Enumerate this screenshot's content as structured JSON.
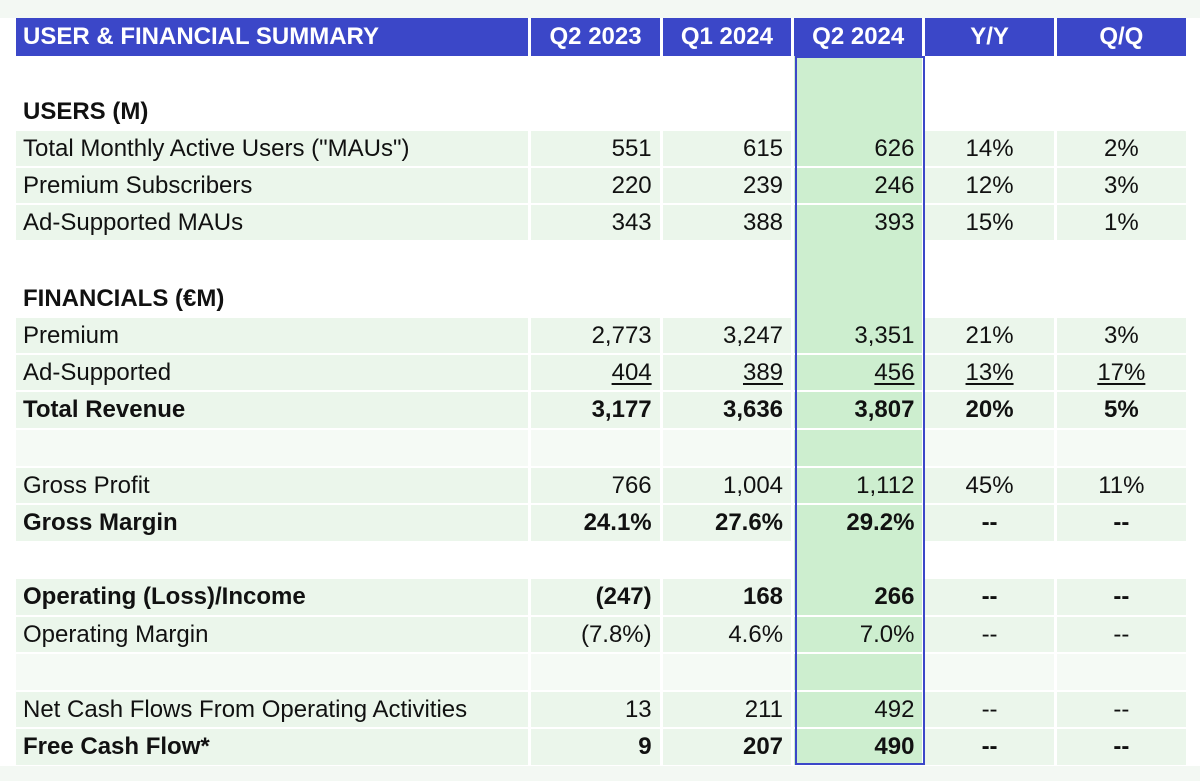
{
  "header": {
    "title": "USER & FINANCIAL SUMMARY",
    "columns": [
      "Q2 2023",
      "Q1 2024",
      "Q2 2024",
      "Y/Y",
      "Q/Q"
    ]
  },
  "sections": {
    "users": "USERS (M)",
    "financials": "FINANCIALS (€M)"
  },
  "rows": {
    "mau": [
      "Total Monthly Active Users (\"MAUs\")",
      "551",
      "615",
      "626",
      "14%",
      "2%"
    ],
    "premium_subs": [
      "Premium Subscribers",
      "220",
      "239",
      "246",
      "12%",
      "3%"
    ],
    "ad_maus": [
      "Ad-Supported MAUs",
      "343",
      "388",
      "393",
      "15%",
      "1%"
    ],
    "premium": [
      "Premium",
      "2,773",
      "3,247",
      "3,351",
      "21%",
      "3%"
    ],
    "ad_supported": [
      "Ad-Supported",
      "404",
      "389",
      "456",
      "13%",
      "17%"
    ],
    "total_revenue": [
      "Total Revenue",
      "3,177",
      "3,636",
      "3,807",
      "20%",
      "5%"
    ],
    "gross_profit": [
      "Gross Profit",
      "766",
      "1,004",
      "1,112",
      "45%",
      "11%"
    ],
    "gross_margin": [
      "Gross Margin",
      "24.1%",
      "27.6%",
      "29.2%",
      "--",
      "--"
    ],
    "operating_income": [
      "Operating (Loss)/Income",
      "(247)",
      "168",
      "266",
      "--",
      "--"
    ],
    "operating_margin": [
      "Operating Margin",
      "(7.8%)",
      "4.6%",
      "7.0%",
      "--",
      "--"
    ],
    "net_cash_flows": [
      "Net Cash Flows From Operating Activities",
      "13",
      "211",
      "492",
      "--",
      "--"
    ],
    "free_cash_flow": [
      "Free Cash Flow*",
      "9",
      "207",
      "490",
      "--",
      "--"
    ]
  },
  "colors": {
    "header_bg": "#3b47c8",
    "row_bg": "#ebf6eb",
    "highlight_bg": "#cdeecf",
    "highlight_border": "#3b47c8"
  }
}
